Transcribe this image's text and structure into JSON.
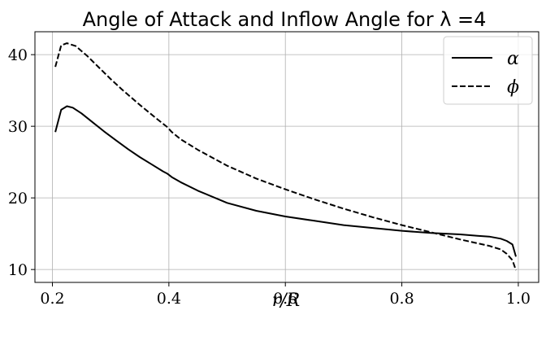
{
  "chart_data": {
    "type": "line",
    "title": "Angle of Attack and Inflow Angle for λ =4",
    "xlabel": "r/R",
    "ylabel": "",
    "xlim": [
      0.17,
      1.035
    ],
    "ylim": [
      8.2,
      43.2
    ],
    "xticks": [
      0.2,
      0.4,
      0.6,
      0.8,
      1.0
    ],
    "xtick_labels": [
      "0.2",
      "0.4",
      "0.6",
      "0.8",
      "1.0"
    ],
    "yticks": [
      10,
      20,
      30,
      40
    ],
    "ytick_labels": [
      "10",
      "20",
      "30",
      "40"
    ],
    "grid": true,
    "legend_position": "top-right",
    "series": [
      {
        "name": "α",
        "line_style": "solid",
        "color": "#000000",
        "x": [
          0.205,
          0.215,
          0.225,
          0.235,
          0.25,
          0.27,
          0.29,
          0.31,
          0.33,
          0.35,
          0.37,
          0.39,
          0.397,
          0.405,
          0.42,
          0.45,
          0.5,
          0.55,
          0.6,
          0.65,
          0.7,
          0.75,
          0.8,
          0.85,
          0.9,
          0.93,
          0.95,
          0.97,
          0.98,
          0.99,
          0.996
        ],
        "y": [
          29.2,
          32.3,
          32.8,
          32.6,
          31.8,
          30.5,
          29.2,
          28.0,
          26.8,
          25.7,
          24.7,
          23.7,
          23.4,
          22.9,
          22.2,
          21.0,
          19.3,
          18.2,
          17.4,
          16.8,
          16.2,
          15.8,
          15.4,
          15.1,
          14.9,
          14.7,
          14.6,
          14.3,
          14.0,
          13.5,
          11.8
        ]
      },
      {
        "name": "ϕ",
        "line_style": "dashed",
        "color": "#000000",
        "x": [
          0.205,
          0.215,
          0.225,
          0.24,
          0.26,
          0.28,
          0.3,
          0.32,
          0.35,
          0.38,
          0.397,
          0.405,
          0.42,
          0.45,
          0.5,
          0.55,
          0.6,
          0.65,
          0.7,
          0.75,
          0.8,
          0.85,
          0.9,
          0.95,
          0.97,
          0.98,
          0.99,
          0.996
        ],
        "y": [
          38.3,
          41.3,
          41.6,
          41.2,
          39.8,
          38.2,
          36.6,
          35.1,
          33.0,
          31.0,
          29.9,
          29.2,
          28.2,
          26.7,
          24.5,
          22.7,
          21.2,
          19.8,
          18.5,
          17.3,
          16.2,
          15.2,
          14.2,
          13.3,
          12.8,
          12.2,
          11.3,
          9.9
        ]
      }
    ]
  }
}
